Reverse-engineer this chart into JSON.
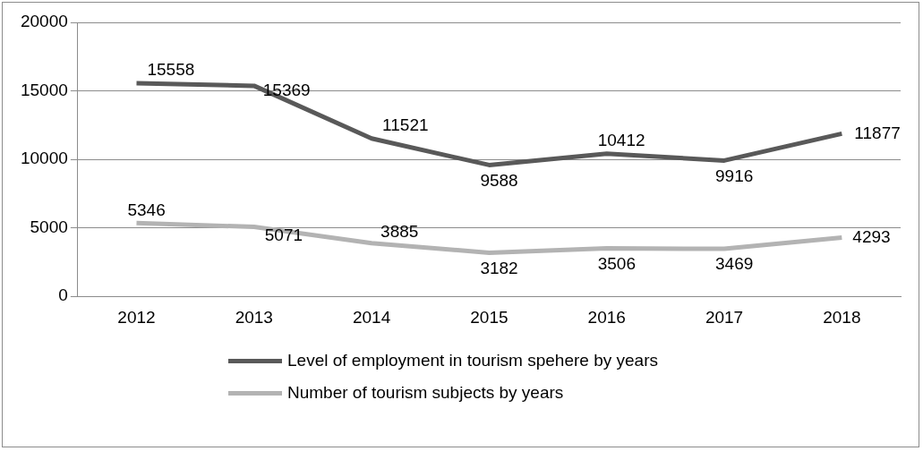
{
  "chart_data": {
    "type": "line",
    "categories": [
      "2012",
      "2013",
      "2014",
      "2015",
      "2016",
      "2017",
      "2018"
    ],
    "series": [
      {
        "name": "Level of employment in tourism spehere by years",
        "color": "#595959",
        "values": [
          15558,
          15369,
          11521,
          9588,
          10412,
          9916,
          11877
        ]
      },
      {
        "name": "Number of tourism subjects by years",
        "color": "#b3b3b3",
        "values": [
          5346,
          5071,
          3885,
          3182,
          3506,
          3469,
          4293
        ]
      }
    ],
    "ylim": [
      0,
      20000
    ],
    "yticks": [
      0,
      5000,
      10000,
      15000,
      20000
    ],
    "grid": "y",
    "legend": "bottom",
    "data_labels": true,
    "marker": "none",
    "line_style": "solid"
  }
}
